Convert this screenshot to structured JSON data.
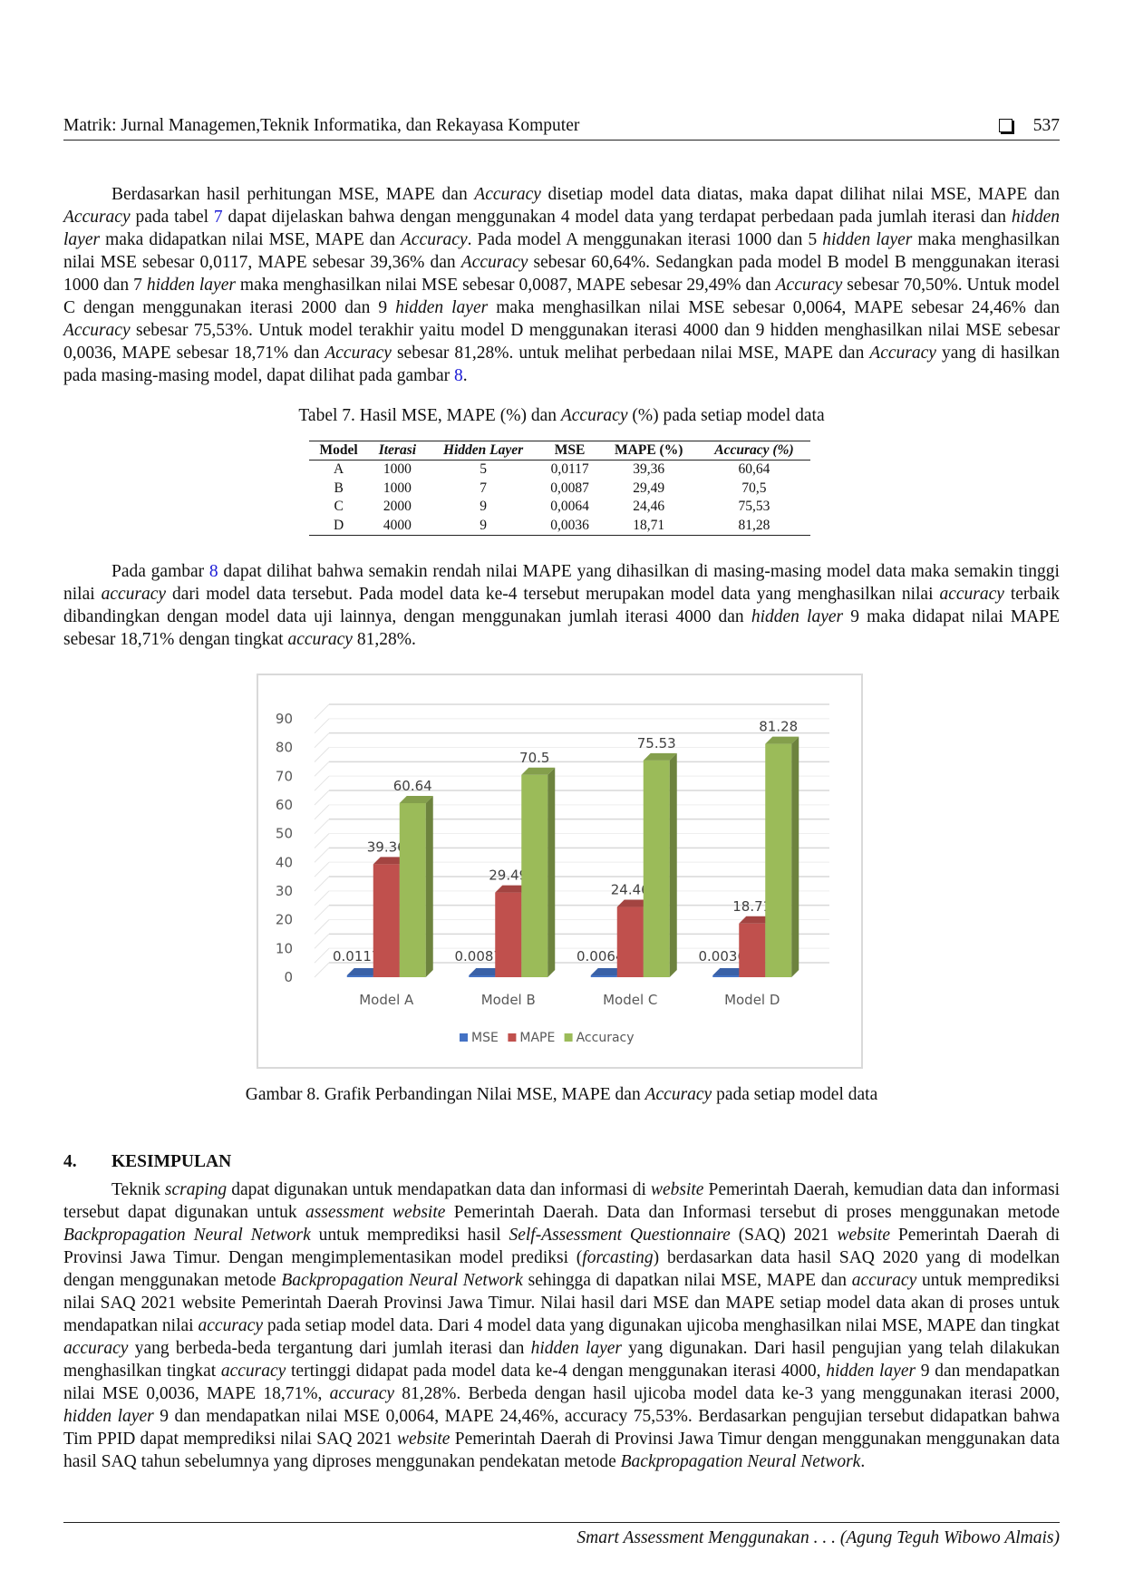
{
  "header": {
    "journal": "Matrik: Jurnal Managemen,Teknik Informatika, dan Rekayasa Komputer",
    "page": "537"
  },
  "paragraph1": [
    [
      "Berdasarkan hasil perhitungan MSE, MAPE dan ",
      ""
    ],
    [
      "Accuracy",
      "i"
    ],
    [
      " disetiap model data diatas, maka dapat dilihat nilai MSE, MAPE dan ",
      ""
    ],
    [
      "Accuracy",
      "i"
    ],
    [
      " pada tabel ",
      ""
    ],
    [
      "7",
      "l"
    ],
    [
      " dapat dijelaskan bahwa dengan menggunakan 4 model data yang terdapat perbedaan pada jumlah iterasi dan ",
      ""
    ],
    [
      "hidden layer",
      "i"
    ],
    [
      " maka didapatkan nilai MSE, MAPE dan ",
      ""
    ],
    [
      "Accuracy",
      "i"
    ],
    [
      ". Pada model A menggunakan iterasi 1000 dan 5 ",
      ""
    ],
    [
      "hidden layer",
      "i"
    ],
    [
      " maka menghasilkan nilai MSE sebesar 0,0117, MAPE sebesar 39,36% dan ",
      ""
    ],
    [
      "Accuracy",
      "i"
    ],
    [
      " sebesar 60,64%. Sedangkan pada model B model B menggunakan iterasi 1000 dan 7 ",
      ""
    ],
    [
      "hidden layer",
      "i"
    ],
    [
      " maka menghasilkan nilai MSE sebesar 0,0087, MAPE sebesar 29,49% dan ",
      ""
    ],
    [
      "Accuracy",
      "i"
    ],
    [
      " sebesar 70,50%. Untuk model C dengan menggunakan iterasi 2000 dan 9 ",
      ""
    ],
    [
      "hidden layer",
      "i"
    ],
    [
      " maka menghasilkan nilai MSE sebesar 0,0064, MAPE sebesar 24,46% dan ",
      ""
    ],
    [
      "Accuracy",
      "i"
    ],
    [
      " sebesar 75,53%. Untuk model terakhir yaitu model D menggunakan iterasi 4000 dan 9 hidden menghasilkan nilai MSE sebesar 0,0036, MAPE sebesar 18,71% dan ",
      ""
    ],
    [
      "Accuracy",
      "i"
    ],
    [
      " sebesar 81,28%. untuk melihat perbedaan nilai MSE, MAPE dan ",
      ""
    ],
    [
      "Accuracy",
      "i"
    ],
    [
      " yang di hasilkan pada masing-masing model, dapat dilihat pada gambar ",
      ""
    ],
    [
      "8",
      "l"
    ],
    [
      ".",
      ""
    ]
  ],
  "table_caption": [
    [
      "Tabel 7. Hasil MSE, MAPE (%) dan ",
      ""
    ],
    [
      "Accuracy",
      "i"
    ],
    [
      " (%) pada setiap model data",
      ""
    ]
  ],
  "table": {
    "headers": [
      [
        "Model",
        ""
      ],
      [
        "Iterasi",
        "i"
      ],
      [
        "Hidden Layer",
        "i"
      ],
      [
        "MSE",
        ""
      ],
      [
        "MAPE (%)",
        ""
      ],
      [
        "Accuracy (%)",
        "i"
      ]
    ],
    "rows": [
      [
        "A",
        "1000",
        "5",
        "0,0117",
        "39,36",
        "60,64"
      ],
      [
        "B",
        "1000",
        "7",
        "0,0087",
        "29,49",
        "70,5"
      ],
      [
        "C",
        "2000",
        "9",
        "0,0064",
        "24,46",
        "75,53"
      ],
      [
        "D",
        "4000",
        "9",
        "0,0036",
        "18,71",
        "81,28"
      ]
    ]
  },
  "paragraph2": [
    [
      "Pada gambar ",
      ""
    ],
    [
      "8",
      "l"
    ],
    [
      " dapat dilihat bahwa semakin rendah nilai MAPE yang dihasilkan di masing-masing model data maka semakin tinggi nilai ",
      ""
    ],
    [
      "accuracy",
      "i"
    ],
    [
      " dari model data tersebut. Pada model data ke-4 tersebut merupakan model data yang menghasilkan nilai ",
      ""
    ],
    [
      "accuracy",
      "i"
    ],
    [
      " terbaik dibandingkan dengan model data uji lainnya, dengan menggunakan jumlah iterasi 4000 dan ",
      ""
    ],
    [
      "hidden layer",
      "i"
    ],
    [
      " 9 maka didapat nilai MAPE sebesar 18,71% dengan tingkat ",
      ""
    ],
    [
      "accuracy",
      "i"
    ],
    [
      " 81,28%.",
      ""
    ]
  ],
  "chart_data": {
    "type": "bar",
    "style": "3d-clustered-column",
    "categories": [
      "Model A",
      "Model B",
      "Model C",
      "Model D"
    ],
    "series": [
      {
        "name": "MSE",
        "color": "#4472c4",
        "values": [
          0.0117,
          0.0087,
          0.0064,
          0.0036
        ],
        "labels": [
          "0.0117",
          "0.0087",
          "0.0064",
          "0.0036"
        ]
      },
      {
        "name": "MAPE",
        "color": "#c0504d",
        "values": [
          39.36,
          29.49,
          24.46,
          18.71
        ],
        "labels": [
          "39.36",
          "29.49",
          "24.46",
          "18.71"
        ]
      },
      {
        "name": "Accuracy",
        "color": "#9bbb59",
        "values": [
          60.64,
          70.5,
          75.53,
          81.28
        ],
        "labels": [
          "60.64",
          "70.5",
          "75.53",
          "81.28"
        ]
      }
    ],
    "yticks": [
      "0",
      "10",
      "20",
      "30",
      "40",
      "50",
      "60",
      "70",
      "80",
      "90"
    ],
    "ylim": [
      0,
      90
    ],
    "grid": true,
    "legend": "bottom"
  },
  "figure_caption": [
    [
      "Gambar 8. Grafik Perbandingan Nilai MSE, MAPE dan ",
      ""
    ],
    [
      "Accuracy",
      "i"
    ],
    [
      " pada setiap model data",
      ""
    ]
  ],
  "section": {
    "number": "4.",
    "title": "KESIMPULAN"
  },
  "paragraph3": [
    [
      "Teknik ",
      ""
    ],
    [
      "scraping",
      "i"
    ],
    [
      " dapat digunakan untuk mendapatkan data dan informasi di ",
      ""
    ],
    [
      "website",
      "i"
    ],
    [
      " Pemerintah Daerah, kemudian data dan informasi tersebut dapat digunakan untuk ",
      ""
    ],
    [
      "assessment website",
      "i"
    ],
    [
      " Pemerintah Daerah. Data dan Informasi tersebut di proses menggunakan metode ",
      ""
    ],
    [
      "Backpropagation Neural Network",
      "i"
    ],
    [
      " untuk memprediksi hasil ",
      ""
    ],
    [
      "Self-Assessment Questionnaire",
      "i"
    ],
    [
      " (SAQ) 2021 ",
      ""
    ],
    [
      "website",
      "i"
    ],
    [
      " Pemerintah Daerah di Provinsi Jawa Timur. Dengan mengimplementasikan model prediksi (",
      ""
    ],
    [
      "forcasting",
      "i"
    ],
    [
      ") berdasarkan data hasil SAQ 2020 yang di modelkan dengan menggunakan metode ",
      ""
    ],
    [
      "Backpropagation Neural Network",
      "i"
    ],
    [
      " sehingga di dapatkan nilai MSE, MAPE dan ",
      ""
    ],
    [
      "accuracy",
      "i"
    ],
    [
      " untuk memprediksi nilai SAQ 2021 website Pemerintah Daerah Provinsi Jawa Timur. Nilai hasil dari MSE dan MAPE setiap model data akan di proses untuk mendapatkan nilai ",
      ""
    ],
    [
      "accuracy",
      "i"
    ],
    [
      " pada setiap model data. Dari 4 model data yang digunakan ujicoba menghasilkan nilai MSE, MAPE dan tingkat ",
      ""
    ],
    [
      "accuracy",
      "i"
    ],
    [
      " yang berbeda-beda tergantung dari jumlah iterasi dan ",
      ""
    ],
    [
      "hidden layer",
      "i"
    ],
    [
      " yang digunakan. Dari hasil pengujian yang telah dilakukan menghasilkan tingkat ",
      ""
    ],
    [
      "accuracy",
      "i"
    ],
    [
      " tertinggi didapat pada model data ke-4 dengan menggunakan iterasi 4000, ",
      ""
    ],
    [
      "hidden layer",
      "i"
    ],
    [
      " 9 dan mendapatkan nilai MSE 0,0036, MAPE 18,71%, ",
      ""
    ],
    [
      "accuracy",
      "i"
    ],
    [
      " 81,28%. Berbeda dengan hasil ujicoba model data ke-3 yang menggunakan iterasi 2000, ",
      ""
    ],
    [
      "hidden layer",
      "i"
    ],
    [
      " 9 dan mendapatkan nilai MSE 0,0064, MAPE 24,46%, accuracy 75,53%. Berdasarkan pengujian tersebut didapatkan bahwa Tim PPID dapat memprediksi nilai SAQ 2021 ",
      ""
    ],
    [
      "website",
      "i"
    ],
    [
      " Pemerintah Daerah di Provinsi Jawa Timur dengan menggunakan menggunakan data hasil SAQ tahun sebelumnya yang diproses menggunakan pendekatan metode ",
      ""
    ],
    [
      "Backpropagation Neural Network",
      "i"
    ],
    [
      ".",
      ""
    ]
  ],
  "footer": "Smart Assessment Menggunakan . . . (Agung Teguh Wibowo Almais)"
}
